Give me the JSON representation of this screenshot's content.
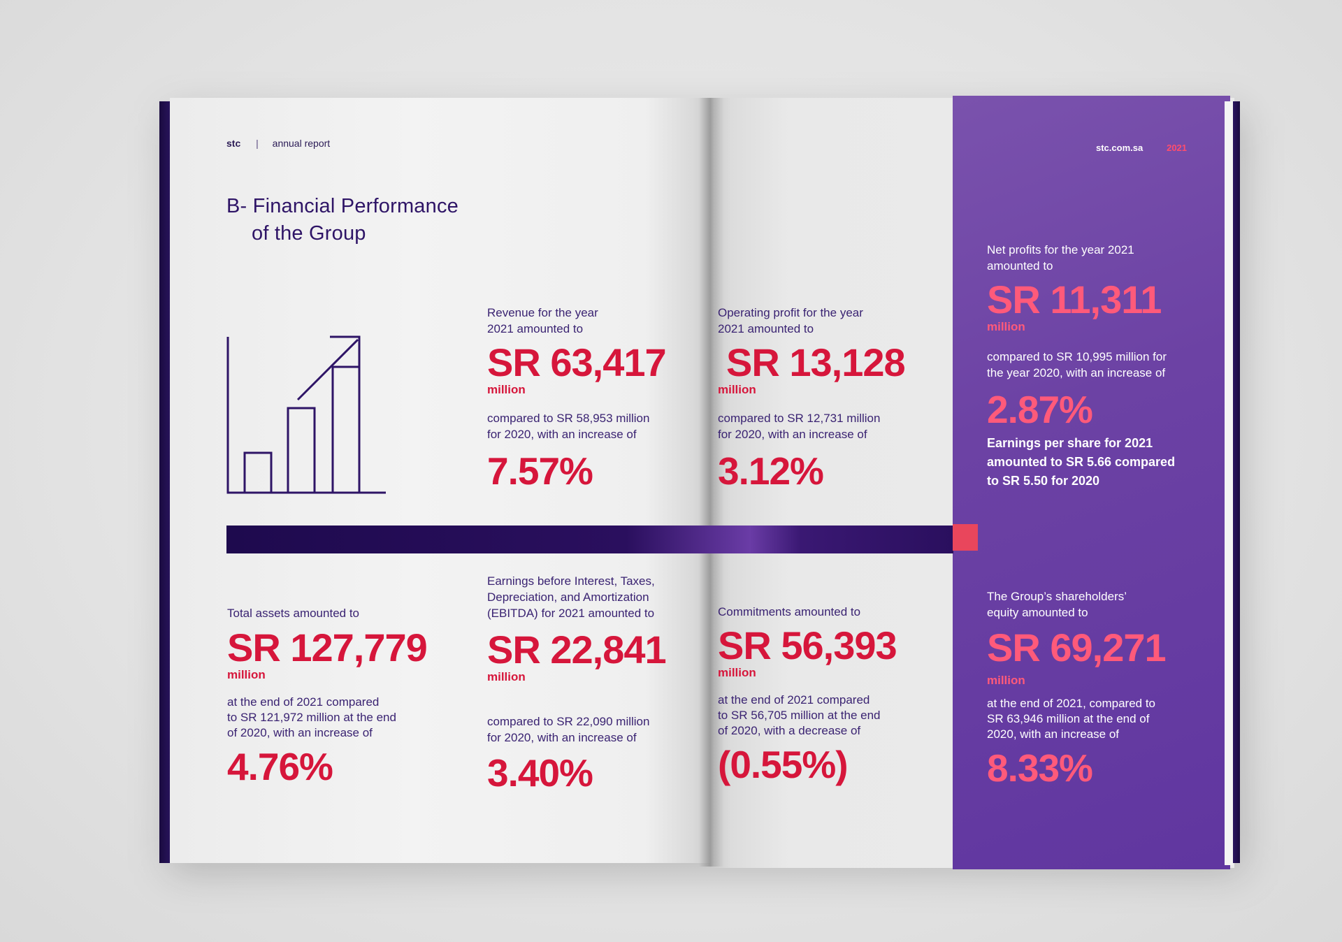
{
  "header": {
    "brand": "stc",
    "separator": "|",
    "section": "annual report",
    "website": "stc.com.sa",
    "year": "2021"
  },
  "title": {
    "line1": "B- Financial Performance",
    "line2": "of the Group"
  },
  "icons": {
    "chart": "bar-chart-growth-arrow-icon",
    "chart_level": [
      0.26,
      0.55,
      0.82
    ]
  },
  "colors": {
    "accent_red": "#d6163b",
    "accent_pink": "#ff5a7a",
    "purple": "#6c42a4",
    "navy": "#1e0a4e"
  },
  "revenue": {
    "lead": [
      "Revenue for the year",
      "2021 amounted to"
    ],
    "amount": "SR 63,417",
    "unit": "million",
    "comparison": [
      "compared to SR 58,953 million",
      "for 2020, with an increase of"
    ],
    "change": "7.57%"
  },
  "operating_profit": {
    "lead": [
      "Operating profit for the year",
      "2021 amounted to"
    ],
    "amount": "SR 13,128",
    "unit": "million",
    "comparison": [
      "compared to SR 12,731 million",
      "for 2020, with an increase of"
    ],
    "change": "3.12%"
  },
  "net_profit": {
    "lead": [
      "Net profits for the year 2021",
      "amounted to"
    ],
    "amount": "SR 11,311",
    "unit": "million",
    "comparison": [
      "compared to SR 10,995 million for",
      "the year 2020, with an increase of"
    ],
    "change": "2.87%",
    "eps": [
      "Earnings per share for 2021",
      "amounted to SR 5.66 compared",
      "to SR 5.50 for 2020"
    ]
  },
  "total_assets": {
    "lead": [
      "Total assets amounted to"
    ],
    "amount": "SR 127,779",
    "unit": "million",
    "comparison": [
      "at the end of 2021 compared",
      "to SR 121,972 million at the end",
      "of 2020, with an increase of"
    ],
    "change": "4.76%"
  },
  "ebitda": {
    "lead": [
      "Earnings before Interest, Taxes,",
      "Depreciation, and Amortization",
      "(EBITDA) for 2021 amounted to"
    ],
    "amount": "SR 22,841",
    "unit": "million",
    "comparison": [
      "compared to SR 22,090 million",
      "for 2020, with an increase of"
    ],
    "change": "3.40%"
  },
  "commitments": {
    "lead": [
      "Commitments amounted to"
    ],
    "amount": "SR 56,393",
    "unit": "million",
    "comparison": [
      "at the end of 2021 compared",
      "to SR 56,705 million at the end",
      "of 2020, with a decrease of"
    ],
    "change": "(0.55%)"
  },
  "equity": {
    "lead": [
      "The Group’s shareholders’",
      "equity amounted to"
    ],
    "amount": "SR 69,271",
    "unit": "million",
    "comparison": [
      "at the end of 2021, compared to",
      "SR 63,946 million at the end of",
      "2020, with an increase of"
    ],
    "change": "8.33%"
  }
}
